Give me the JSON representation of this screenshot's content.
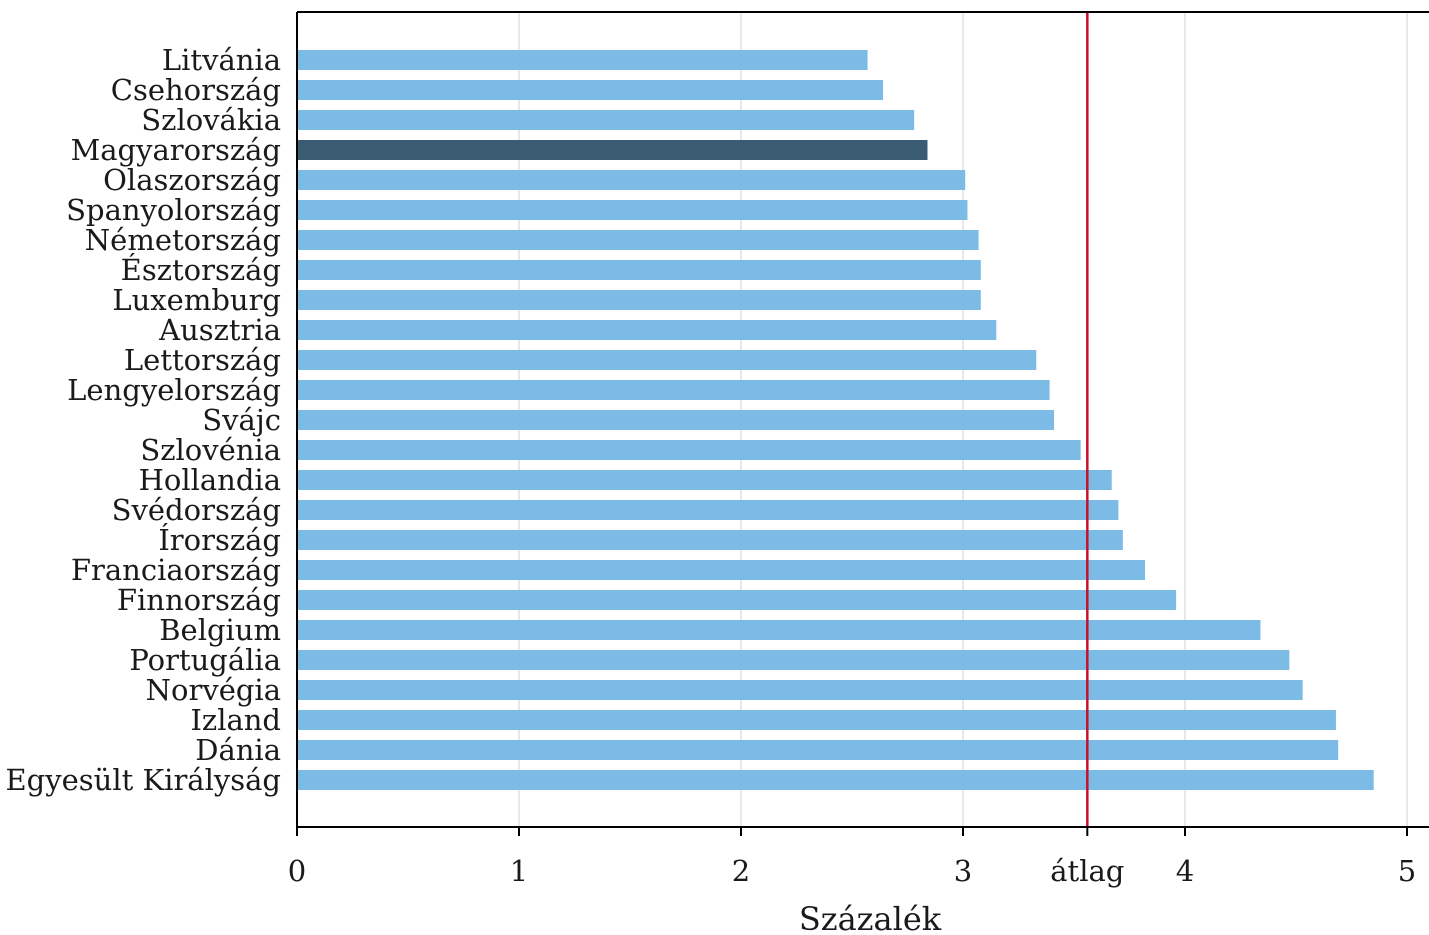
{
  "chart_data": {
    "type": "bar",
    "orientation": "horizontal",
    "categories": [
      "Litvánia",
      "Csehország",
      "Szlovákia",
      "Magyarország",
      "Olaszország",
      "Spanyolország",
      "Németország",
      "Észtország",
      "Luxemburg",
      "Ausztria",
      "Lettország",
      "Lengyelország",
      "Svájc",
      "Szlovénia",
      "Hollandia",
      "Svédország",
      "Írország",
      "Franciaország",
      "Finnország",
      "Belgium",
      "Portugália",
      "Norvégia",
      "Izland",
      "Dánia",
      "Egyesült Királyság"
    ],
    "values": [
      2.57,
      2.64,
      2.78,
      2.84,
      3.01,
      3.02,
      3.07,
      3.08,
      3.08,
      3.15,
      3.33,
      3.39,
      3.41,
      3.53,
      3.67,
      3.7,
      3.72,
      3.82,
      3.96,
      4.34,
      4.47,
      4.53,
      4.68,
      4.69,
      4.85
    ],
    "highlight": "Magyarország",
    "xlim": [
      0,
      5
    ],
    "xticks": [
      0,
      1,
      2,
      3,
      4,
      5
    ],
    "xlabel": "Százalék",
    "average": {
      "value": 3.56,
      "label": "átlag"
    },
    "grid": "vertical",
    "colors": {
      "bar": "#7bbbe6",
      "highlight": "#3b5b73",
      "average_line": "#c8102e",
      "grid": "#d8d8d8",
      "axis": "#000000"
    }
  }
}
